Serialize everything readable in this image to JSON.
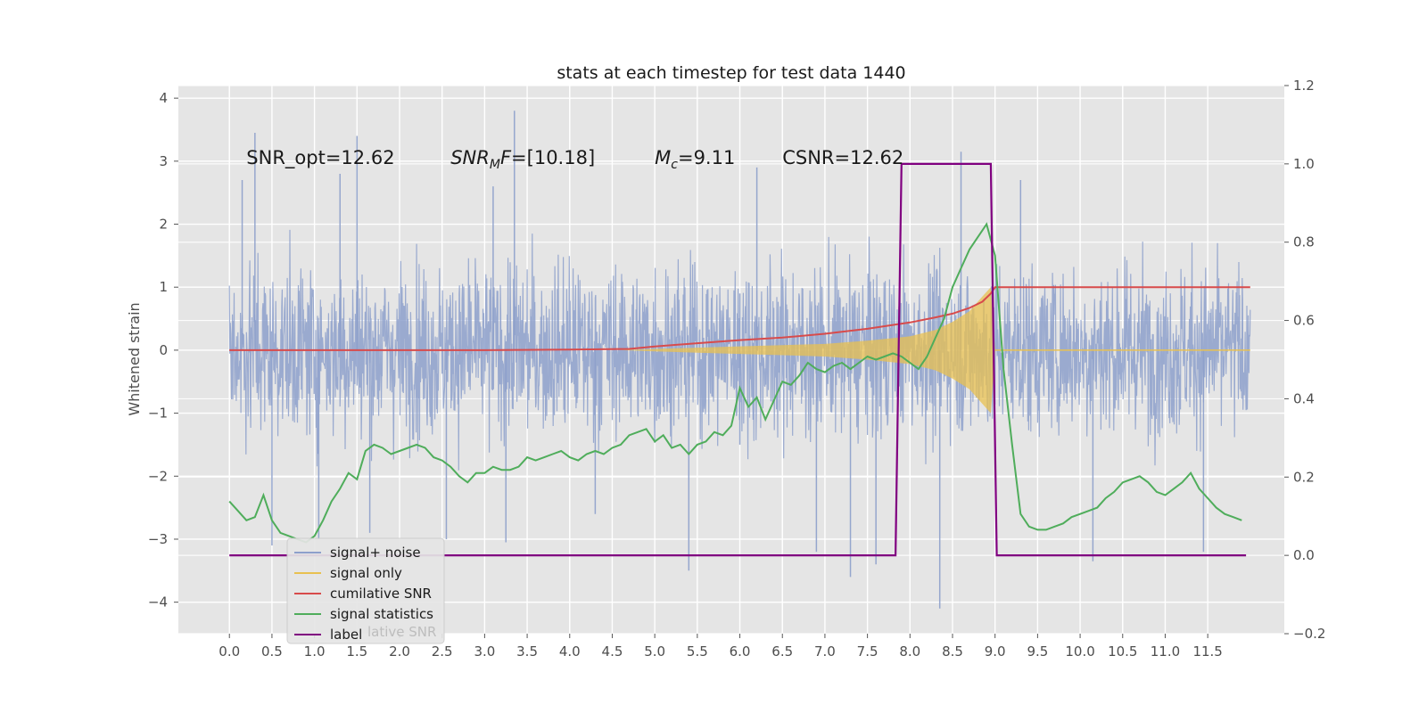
{
  "chart_data": {
    "type": "line",
    "title": "stats at each timestep for test data 1440",
    "xlabel": "",
    "ylabel": "Whitened strain",
    "y2label": "",
    "xlim": [
      -0.6,
      12.4
    ],
    "ylim": [
      -4.5,
      4.2
    ],
    "y2lim": [
      -0.2,
      1.2
    ],
    "grid": true,
    "legend_position": "lower-left",
    "x_ticks": [
      0.0,
      0.5,
      1.0,
      1.5,
      2.0,
      2.5,
      3.0,
      3.5,
      4.0,
      4.5,
      5.0,
      5.5,
      6.0,
      6.5,
      7.0,
      7.5,
      8.0,
      8.5,
      9.0,
      9.5,
      10.0,
      10.5,
      11.0,
      11.5
    ],
    "x_tick_labels": [
      "0.0",
      "0.5",
      "1.0",
      "1.5",
      "2.0",
      "2.5",
      "3.0",
      "3.5",
      "4.0",
      "4.5",
      "5.0",
      "5.5",
      "6.0",
      "6.5",
      "7.0",
      "7.5",
      "8.0",
      "8.5",
      "9.0",
      "9.5",
      "10.0",
      "10.5",
      "11.0",
      "11.5"
    ],
    "y_ticks": [
      -4,
      -3,
      -2,
      -1,
      0,
      1,
      2,
      3,
      4
    ],
    "y_tick_labels": [
      "−4",
      "−3",
      "−2",
      "−1",
      "0",
      "1",
      "2",
      "3",
      "4"
    ],
    "y2_ticks": [
      -0.2,
      0.0,
      0.2,
      0.4,
      0.6,
      0.8,
      1.0,
      1.2
    ],
    "y2_tick_labels": [
      "−0.2",
      "0.0",
      "0.2",
      "0.4",
      "0.6",
      "0.8",
      "1.0",
      "1.2"
    ],
    "annotations": [
      {
        "text": "SNR_opt=12.62",
        "x": 0.2,
        "y": 3.0
      },
      {
        "text": "SNR_MF=[10.18]",
        "x": 2.6,
        "y": 3.0
      },
      {
        "text": "M_c=9.11",
        "x": 5.0,
        "y": 3.0
      },
      {
        "text": "CSNR=12.62",
        "x": 6.5,
        "y": 3.0
      }
    ],
    "series": [
      {
        "name": "signal+ noise",
        "axis": "left",
        "color": "#8da0cb",
        "kind": "noise band",
        "x_range": [
          0.0,
          12.0
        ],
        "envelope_typical": [
          -2.0,
          2.0
        ],
        "spikes": [
          [
            0.3,
            3.45
          ],
          [
            0.15,
            2.7
          ],
          [
            1.5,
            3.4
          ],
          [
            1.3,
            2.8
          ],
          [
            3.35,
            3.8
          ],
          [
            3.1,
            2.6
          ],
          [
            6.2,
            2.9
          ],
          [
            8.6,
            3.15
          ],
          [
            9.3,
            2.7
          ],
          [
            0.5,
            -3.1
          ],
          [
            1.05,
            -3.0
          ],
          [
            2.55,
            -3.0
          ],
          [
            3.25,
            -3.05
          ],
          [
            5.4,
            -3.5
          ],
          [
            6.0,
            -1.5
          ],
          [
            6.0,
            0.9
          ],
          [
            6.9,
            -3.2
          ],
          [
            7.3,
            -3.6
          ],
          [
            7.6,
            -3.4
          ],
          [
            8.35,
            -4.1
          ],
          [
            10.15,
            -3.35
          ],
          [
            11.45,
            -3.2
          ],
          [
            1.65,
            -2.9
          ],
          [
            4.3,
            -2.6
          ]
        ]
      },
      {
        "name": "signal only",
        "axis": "left",
        "color": "#e8c050",
        "kind": "chirp",
        "x": [
          0.0,
          4.6,
          5.0,
          5.5,
          6.0,
          6.5,
          7.0,
          7.5,
          8.0,
          8.3,
          8.5,
          8.7,
          8.85,
          8.95,
          9.0,
          12.0
        ],
        "amplitude": [
          0.0,
          0.0,
          0.02,
          0.04,
          0.06,
          0.08,
          0.1,
          0.15,
          0.22,
          0.32,
          0.45,
          0.62,
          0.85,
          1.0,
          0.0,
          0.0
        ]
      },
      {
        "name": "cumilative SNR",
        "axis": "left",
        "color": "#d84b4b",
        "x": [
          0.0,
          1.0,
          2.0,
          3.0,
          4.0,
          4.7,
          5.0,
          5.5,
          6.0,
          6.5,
          7.0,
          7.5,
          8.0,
          8.3,
          8.5,
          8.7,
          8.85,
          8.95,
          9.0,
          10.0,
          11.0,
          12.0
        ],
        "values": [
          0.0,
          0.0,
          0.0,
          0.0,
          0.01,
          0.02,
          0.06,
          0.11,
          0.16,
          0.2,
          0.26,
          0.34,
          0.44,
          0.52,
          0.58,
          0.67,
          0.77,
          0.9,
          1.0,
          1.0,
          1.0,
          1.0
        ]
      },
      {
        "name": "signal statistics",
        "axis": "left",
        "color": "#4fad5b",
        "x": [
          0.0,
          0.1,
          0.2,
          0.3,
          0.4,
          0.5,
          0.6,
          0.7,
          0.8,
          0.9,
          1.0,
          1.1,
          1.2,
          1.3,
          1.4,
          1.5,
          1.6,
          1.7,
          1.8,
          1.9,
          2.0,
          2.1,
          2.2,
          2.3,
          2.4,
          2.5,
          2.6,
          2.7,
          2.8,
          2.9,
          3.0,
          3.1,
          3.2,
          3.3,
          3.4,
          3.5,
          3.6,
          3.7,
          3.8,
          3.9,
          4.0,
          4.1,
          4.2,
          4.3,
          4.4,
          4.5,
          4.6,
          4.7,
          4.8,
          4.9,
          5.0,
          5.1,
          5.2,
          5.3,
          5.4,
          5.5,
          5.6,
          5.7,
          5.8,
          5.9,
          6.0,
          6.1,
          6.2,
          6.3,
          6.4,
          6.5,
          6.6,
          6.7,
          6.8,
          6.9,
          7.0,
          7.1,
          7.2,
          7.3,
          7.4,
          7.5,
          7.6,
          7.7,
          7.8,
          7.9,
          8.0,
          8.1,
          8.2,
          8.3,
          8.4,
          8.5,
          8.6,
          8.7,
          8.8,
          8.9,
          9.0,
          9.1,
          9.2,
          9.3,
          9.4,
          9.5,
          9.6,
          9.7,
          9.8,
          9.9,
          10.0,
          10.1,
          10.2,
          10.3,
          10.4,
          10.5,
          10.6,
          10.7,
          10.8,
          10.9,
          11.0,
          11.1,
          11.2,
          11.3,
          11.4,
          11.5,
          11.6,
          11.7,
          11.8,
          11.9
        ],
        "values": [
          -2.4,
          -2.55,
          -2.7,
          -2.65,
          -2.3,
          -2.7,
          -2.9,
          -2.95,
          -3.0,
          -3.05,
          -2.95,
          -2.7,
          -2.4,
          -2.2,
          -1.95,
          -2.05,
          -1.6,
          -1.5,
          -1.55,
          -1.65,
          -1.6,
          -1.55,
          -1.5,
          -1.55,
          -1.7,
          -1.75,
          -1.85,
          -2.0,
          -2.1,
          -1.95,
          -1.95,
          -1.85,
          -1.9,
          -1.9,
          -1.85,
          -1.7,
          -1.75,
          -1.7,
          -1.65,
          -1.6,
          -1.7,
          -1.75,
          -1.65,
          -1.6,
          -1.65,
          -1.55,
          -1.5,
          -1.35,
          -1.3,
          -1.25,
          -1.45,
          -1.35,
          -1.55,
          -1.5,
          -1.65,
          -1.5,
          -1.45,
          -1.3,
          -1.35,
          -1.2,
          -0.6,
          -0.9,
          -0.75,
          -1.1,
          -0.8,
          -0.5,
          -0.55,
          -0.4,
          -0.2,
          -0.3,
          -0.35,
          -0.25,
          -0.2,
          -0.3,
          -0.2,
          -0.1,
          -0.15,
          -0.1,
          -0.05,
          -0.1,
          -0.2,
          -0.3,
          -0.1,
          0.2,
          0.5,
          1.0,
          1.3,
          1.6,
          1.8,
          2.0,
          1.5,
          -0.3,
          -1.5,
          -2.6,
          -2.8,
          -2.85,
          -2.85,
          -2.8,
          -2.75,
          -2.65,
          -2.6,
          -2.55,
          -2.5,
          -2.35,
          -2.25,
          -2.1,
          -2.05,
          -2.0,
          -2.1,
          -2.25,
          -2.3,
          -2.2,
          -2.1,
          -1.95,
          -2.2,
          -2.35,
          -2.5,
          -2.6,
          -2.65,
          -2.7
        ]
      },
      {
        "name": "label",
        "axis": "right",
        "color": "#800080",
        "x": [
          0.0,
          7.83,
          7.9,
          8.95,
          9.02,
          11.95
        ],
        "values": [
          0.0,
          0.0,
          1.0,
          1.0,
          0.0,
          0.0
        ]
      }
    ],
    "legend": [
      "signal+ noise",
      "signal only",
      "cumilative SNR",
      "signal statistics",
      "label"
    ],
    "legend_ghost_text": "lative SNR"
  }
}
